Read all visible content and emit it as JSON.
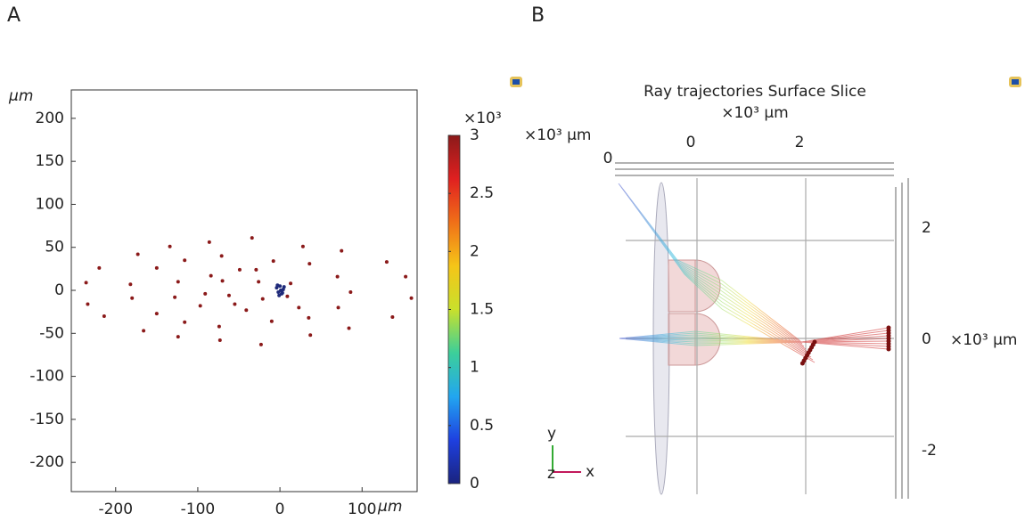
{
  "chart_data": [
    {
      "type": "scatter",
      "panel": "A",
      "x_label": "μm",
      "y_label": "μm",
      "xlim": [
        -254,
        167
      ],
      "ylim": [
        -234,
        233
      ],
      "xticks": [
        -200,
        -100,
        0,
        100
      ],
      "yticks": [
        -200,
        -150,
        -100,
        -50,
        0,
        50,
        100,
        150,
        200
      ],
      "series": [
        {
          "color": "#8b1a1a",
          "x": [
            -236,
            -234,
            -220,
            -214,
            -173,
            -182,
            -180,
            -166,
            -150,
            -150,
            -134,
            -128,
            -124,
            -124,
            -116,
            -116,
            -97,
            -91,
            -86,
            -84,
            -74,
            -73,
            -71,
            -70,
            -62,
            -55,
            -49,
            -41,
            -34,
            -29,
            -26,
            -23,
            -21,
            -10,
            -8,
            9,
            13,
            23,
            28,
            36,
            35,
            37,
            75,
            70,
            71,
            86,
            84,
            130,
            153,
            160,
            137
          ],
          "values": [
            9,
            -16,
            26,
            -30,
            42,
            7,
            -9,
            -47,
            26,
            -27,
            51,
            -8,
            10,
            -54,
            35,
            -37,
            -18,
            -4,
            56,
            17,
            -42,
            -58,
            40,
            11,
            -6,
            -16,
            24,
            -23,
            61,
            24,
            10,
            -63,
            -10,
            -36,
            34,
            -7,
            8,
            -20,
            51,
            31,
            -32,
            -52,
            46,
            16,
            -20,
            -2,
            -44,
            33,
            16,
            -9,
            -31
          ]
        },
        {
          "color": "#1f2a7a",
          "x": [
            -4,
            -2,
            0,
            2,
            4,
            -3,
            1,
            3,
            -1,
            5
          ],
          "values": [
            3,
            -2,
            5,
            -4,
            1,
            6,
            0,
            -3,
            -6,
            4
          ]
        }
      ],
      "colorbar": {
        "label": "×10³",
        "lim": [
          0,
          3
        ],
        "ticks": [
          0,
          0.5,
          1,
          1.5,
          2,
          2.5,
          3
        ],
        "colormap": [
          "#1a237e",
          "#1e40e0",
          "#22a6f0",
          "#3ccf9a",
          "#c9e02c",
          "#f5c518",
          "#f07018",
          "#e02020",
          "#8b1a1a"
        ]
      }
    },
    {
      "type": "ray-diagram",
      "panel": "B",
      "title": "Ray trajectories  Surface  Slice",
      "x_label": "×10³ μm",
      "y_label": "×10³ μm",
      "z_label": "×10³ μm",
      "xlim": [
        -1.4,
        3.8
      ],
      "ylim": [
        -2.8,
        3.1
      ],
      "xticks": [
        0,
        2
      ],
      "yticks": [
        2,
        0,
        -2
      ],
      "zticks": [
        0
      ],
      "triad": {
        "y": "y",
        "z": "z",
        "x": "x"
      }
    }
  ]
}
